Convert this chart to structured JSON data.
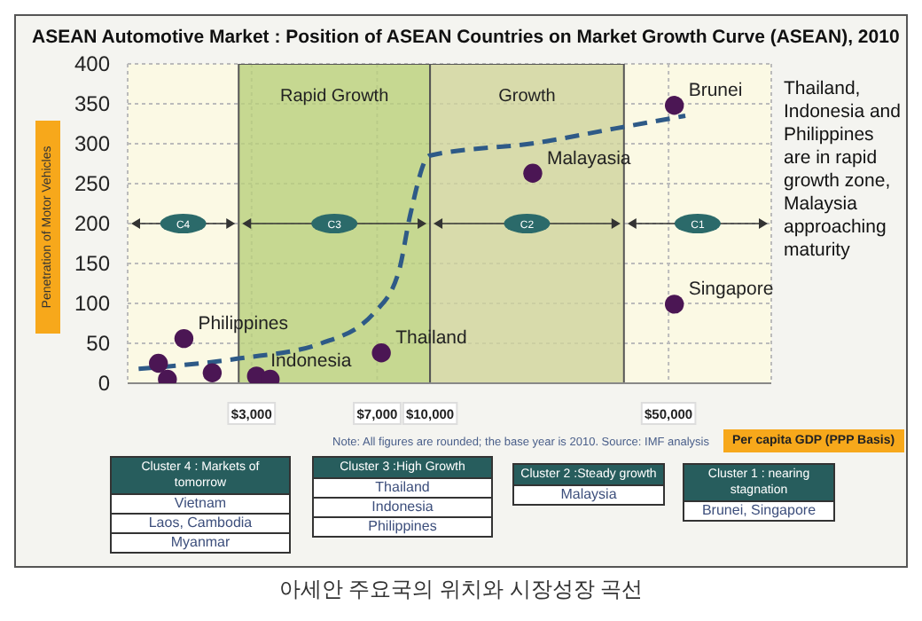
{
  "chart_data": {
    "type": "scatter",
    "title": "ASEAN Automotive Market : Position of ASEAN Countries on Market Growth Curve (ASEAN), 2010",
    "xlabel": "Per capita GDP (PPP Basis)",
    "ylabel": "Penetration of Motor Vehicles",
    "series": [
      {
        "color": "#4b1654",
        "x": [
          1600,
          1700,
          1900,
          2300,
          3100,
          3400,
          7200,
          20000,
          52000,
          52000
        ],
        "values": [
          25,
          5,
          56,
          13,
          9,
          5,
          38,
          263,
          348,
          99
        ]
      },
      {
        "type": "line",
        "color": "#2e5a87",
        "line_style": "dashed",
        "marker": "none",
        "x": [
          1400,
          2750,
          4800,
          6850,
          8100,
          8750,
          9950,
          20500,
          34800,
          56000
        ],
        "values": [
          18,
          31,
          50,
          88,
          140,
          211,
          285,
          301,
          319,
          335
        ]
      }
    ],
    "marker": "circle",
    "log": "x",
    "xlim": [
      1300,
      100000
    ],
    "xticks": [
      {
        "value": 3000,
        "label": "$3,000"
      },
      {
        "value": 7000,
        "label": "$7,000"
      },
      {
        "value": 10000,
        "label": "$10,000"
      },
      {
        "value": 50000,
        "label": "$50,000"
      }
    ],
    "ylim": [
      0,
      400
    ],
    "yticks": [
      0,
      50,
      100,
      150,
      200,
      250,
      300,
      350,
      400
    ],
    "grid": true,
    "legend": false,
    "bands": [
      {
        "axis": "x",
        "from": 2750,
        "to": 10000,
        "label": "Rapid Growth",
        "color": "#b9d07c"
      },
      {
        "axis": "x",
        "from": 10000,
        "to": 37000,
        "label": "Growth",
        "color": "#cfd39c"
      }
    ],
    "annotations": [
      "Note: All figures are rounded; the base year is 2010. Source: IMF analysis",
      "Thailand, Indonesia and Philippines are in rapid growth zone, Malaysia approaching maturity",
      "Cluster 4 : Markets of tomorrow\nVietnam\nLaos, Cambodia\nMyanmar",
      "Cluster 3 :High Growth\nThailand\nIndonesia\nPhilippines",
      "Cluster 2 :Steady growth\nMalaysia",
      "Cluster 1 : nearing stagnation\nBrunei, Singapore",
      "아세안 주요국의 위치와 시장성장 곡선",
      "C4",
      "C3",
      "C2",
      "C1",
      {
        "text": "Philippines",
        "x": 1900,
        "y": 56
      },
      {
        "text": "Indonesia",
        "x": 3100,
        "y": 9
      },
      {
        "text": "Thailand",
        "x": 7200,
        "y": 38
      },
      {
        "text": "Malayasia",
        "x": 20000,
        "y": 263
      },
      {
        "text": "Brunei",
        "x": 52000,
        "y": 348
      },
      {
        "text": "Singapore",
        "x": 52000,
        "y": 99
      }
    ]
  }
}
